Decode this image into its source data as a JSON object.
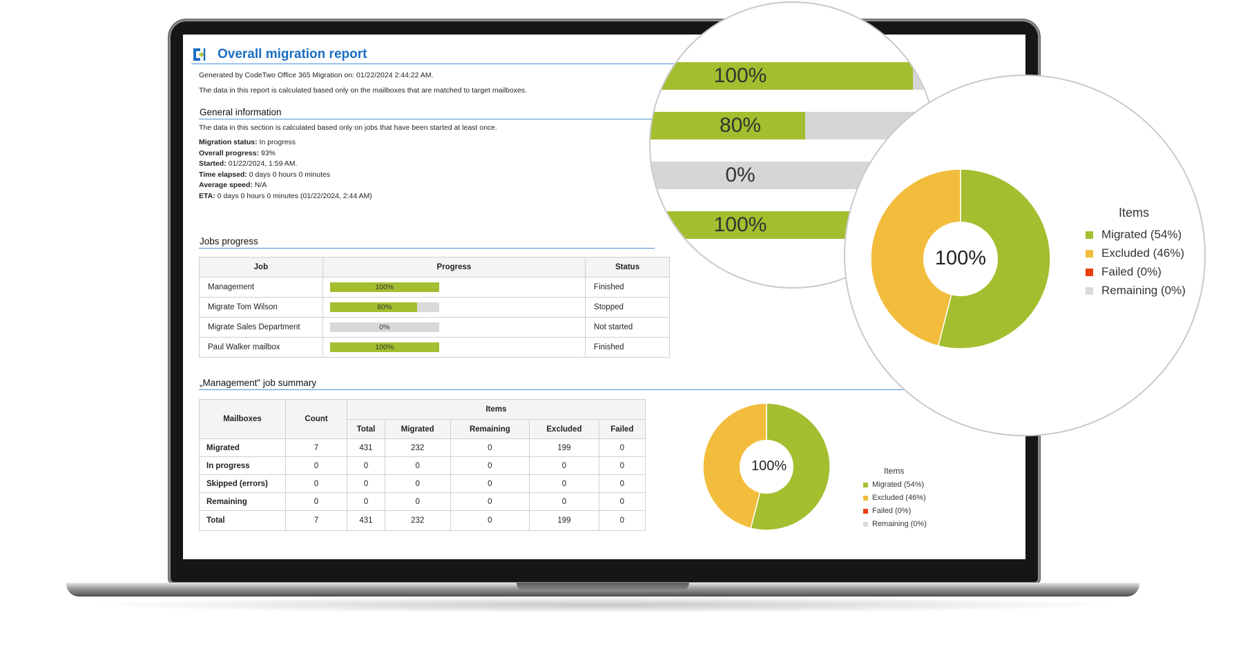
{
  "report": {
    "title": "Overall migration report",
    "generated_by": "Generated by CodeTwo Office 365 Migration on: 01/22/2024 2:44:22 AM.",
    "note": "The data in this report is calculated based only on the mailboxes that are matched to target mailboxes."
  },
  "general": {
    "heading": "General information",
    "note": "The data in this section is calculated based only on jobs that have been started at least once.",
    "fields": [
      {
        "label": "Migration status:",
        "value": " In progress"
      },
      {
        "label": "Overall progress:",
        "value": " 93%"
      },
      {
        "label": "Started:",
        "value": " 01/22/2024, 1:59 AM."
      },
      {
        "label": "Time elapsed:",
        "value": " 0 days 0 hours 0 minutes"
      },
      {
        "label": "Average speed:",
        "value": " N/A"
      },
      {
        "label": "ETA:",
        "value": " 0 days 0 hours 0 minutes (01/22/2024, 2:44 AM)"
      }
    ]
  },
  "jobs": {
    "heading": "Jobs progress",
    "columns": [
      "Job",
      "Progress",
      "Status"
    ],
    "rows": [
      {
        "job": "Management",
        "progress": 100,
        "progress_label": "100%",
        "status": "Finished"
      },
      {
        "job": "Migrate Tom Wilson",
        "progress": 80,
        "progress_label": "80%",
        "status": "Stopped"
      },
      {
        "job": "Migrate Sales Department",
        "progress": 0,
        "progress_label": "0%",
        "status": "Not started"
      },
      {
        "job": "Paul Walker mailbox",
        "progress": 100,
        "progress_label": "100%",
        "status": "Finished"
      }
    ]
  },
  "summary": {
    "heading": "„Management\" job summary",
    "col_mailboxes": "Mailboxes",
    "col_count": "Count",
    "col_items": "Items",
    "item_columns": [
      "Total",
      "Migrated",
      "Remaining",
      "Excluded",
      "Failed"
    ],
    "rows": [
      {
        "label": "Migrated",
        "values": [
          "7",
          "431",
          "232",
          "0",
          "199",
          "0"
        ]
      },
      {
        "label": "In progress",
        "values": [
          "0",
          "0",
          "0",
          "0",
          "0",
          "0"
        ]
      },
      {
        "label": "Skipped (errors)",
        "values": [
          "0",
          "0",
          "0",
          "0",
          "0",
          "0"
        ]
      },
      {
        "label": "Remaining",
        "values": [
          "0",
          "0",
          "0",
          "0",
          "0",
          "0"
        ]
      },
      {
        "label": "Total",
        "values": [
          "7",
          "431",
          "232",
          "0",
          "199",
          "0"
        ]
      }
    ]
  },
  "chart_data": {
    "type": "pie",
    "center_label": "100%",
    "legend_title": "Items",
    "slices": [
      {
        "label": "Migrated (54%)",
        "value": 54,
        "color": "#a3bf2f"
      },
      {
        "label": "Excluded (46%)",
        "value": 46,
        "color": "#f2bc3c"
      },
      {
        "label": "Failed (0%)",
        "value": 0,
        "color": "#e8400f"
      },
      {
        "label": "Remaining (0%)",
        "value": 0,
        "color": "#d9d9d9"
      }
    ]
  },
  "zoom_bars": [
    {
      "progress": 100,
      "label": "100%"
    },
    {
      "progress": 80,
      "label": "80%"
    },
    {
      "progress": 0,
      "label": "0%"
    },
    {
      "progress": 100,
      "label": "100%"
    }
  ]
}
